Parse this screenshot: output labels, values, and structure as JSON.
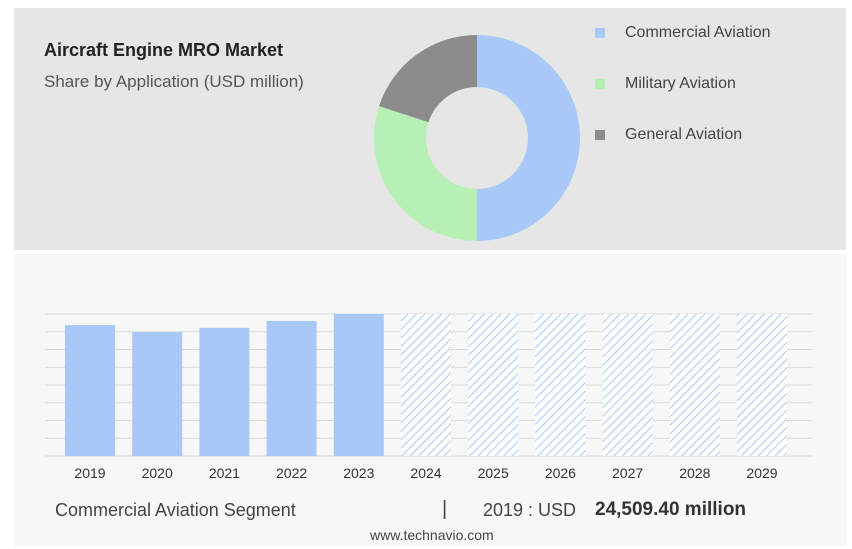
{
  "header": {
    "title": "Aircraft Engine MRO Market",
    "subtitle": "Share by Application (USD million)"
  },
  "colors": {
    "commercial": "#a8c8f8",
    "military": "#b7f0b4",
    "general": "#8c8c8c",
    "forecast_hatch": "#a8c8f8"
  },
  "chart_data": [
    {
      "type": "pie",
      "variant": "donut",
      "categories": [
        "Commercial Aviation",
        "Military Aviation",
        "General Aviation"
      ],
      "values": [
        50,
        30,
        20
      ],
      "legend_position": "right"
    },
    {
      "type": "bar",
      "categories": [
        "2019",
        "2020",
        "2021",
        "2022",
        "2023",
        "2024",
        "2025",
        "2026",
        "2027",
        "2028",
        "2029"
      ],
      "values": [
        24509.4,
        23200,
        24000,
        25300,
        26600,
        null,
        null,
        null,
        null,
        null,
        null
      ],
      "forecast_categories": [
        "2024",
        "2025",
        "2026",
        "2027",
        "2028",
        "2029"
      ],
      "grid": true
    }
  ],
  "footer": {
    "segment_label": "Commercial Aviation Segment",
    "separator": "|",
    "year_label": "2019 : USD",
    "value_label": "24,509.40 million",
    "source": "www.technavio.com"
  }
}
